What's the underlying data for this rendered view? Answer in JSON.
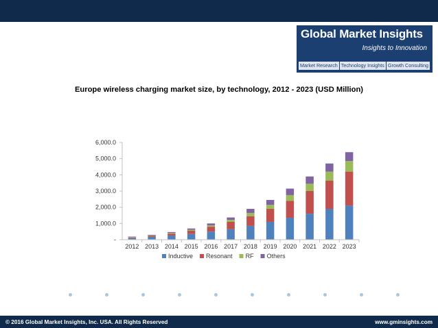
{
  "logo": {
    "title": "Global Market Insights",
    "tagline": "Insights to Innovation",
    "links": [
      "Market Research",
      "Technology Insights",
      "Growth Consulting"
    ]
  },
  "footer": {
    "copyright": "© 2016 Global Market Insights, Inc. USA.  All Rights Reserved",
    "website": "www.gminsights.com"
  },
  "colors": {
    "header_bg": "#0f2a4a",
    "inductive": "#4f81bd",
    "resonant": "#c0504d",
    "rf": "#9bbb59",
    "others": "#8064a2"
  },
  "chart_data": {
    "type": "bar",
    "stacked": true,
    "title": "Europe wireless charging market size, by technology, 2012 - 2023 (USD Million)",
    "xlabel": "",
    "ylabel": "",
    "ylim": [
      0,
      6000
    ],
    "yticks": [
      0,
      1000,
      2000,
      3000,
      4000,
      5000,
      6000
    ],
    "ytick_labels": [
      "-",
      "1,000.0",
      "2,000.0",
      "3,000.0",
      "4,000.0",
      "5,000.0",
      "6,000.0"
    ],
    "categories": [
      "2012",
      "2013",
      "2014",
      "2015",
      "2016",
      "2017",
      "2018",
      "2019",
      "2020",
      "2021",
      "2022",
      "2023"
    ],
    "legend_position": "bottom",
    "series": [
      {
        "name": "Inductive",
        "values": [
          100,
          170,
          250,
          350,
          500,
          650,
          850,
          1100,
          1350,
          1600,
          1900,
          2100
        ]
      },
      {
        "name": "Resonant",
        "values": [
          40,
          60,
          120,
          200,
          300,
          450,
          600,
          800,
          1050,
          1400,
          1750,
          2100
        ]
      },
      {
        "name": "RF",
        "values": [
          20,
          30,
          40,
          60,
          80,
          120,
          200,
          250,
          350,
          450,
          550,
          650
        ]
      },
      {
        "name": "Others",
        "values": [
          30,
          40,
          60,
          80,
          120,
          150,
          250,
          300,
          400,
          450,
          500,
          550
        ]
      }
    ]
  }
}
